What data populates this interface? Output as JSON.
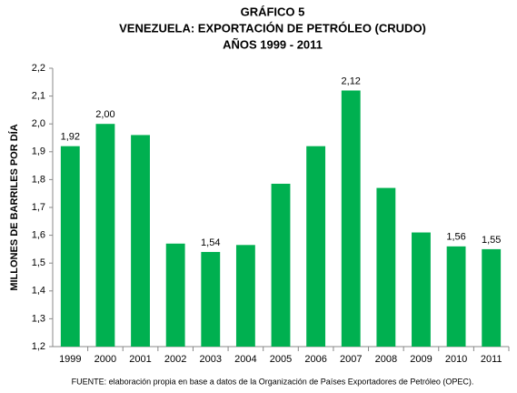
{
  "chart_data": {
    "type": "bar",
    "title": [
      "GRÁFICO 5",
      "VENEZUELA: EXPORTACIÓN DE PETRÓLEO (CRUDO)",
      "AÑOS 1999 - 2011"
    ],
    "ylabel": "MILLONES DE BARRILES POR DÍA",
    "categories": [
      "1999",
      "2000",
      "2001",
      "2002",
      "2003",
      "2004",
      "2005",
      "2006",
      "2007",
      "2008",
      "2009",
      "2010",
      "2011"
    ],
    "values": [
      1.92,
      2.0,
      1.96,
      1.57,
      1.54,
      1.565,
      1.785,
      1.92,
      2.12,
      1.77,
      1.61,
      1.56,
      1.55
    ],
    "value_labels": [
      "1,92",
      "2,00",
      null,
      null,
      "1,54",
      null,
      null,
      null,
      "2,12",
      null,
      null,
      "1,56",
      "1,55"
    ],
    "color": "#00b050",
    "ylim": [
      1.2,
      2.2
    ],
    "yticks": [
      {
        "value": 1.2,
        "label": "1,2"
      },
      {
        "value": 1.3,
        "label": "1,3"
      },
      {
        "value": 1.4,
        "label": "1,4"
      },
      {
        "value": 1.5,
        "label": "1,5"
      },
      {
        "value": 1.6,
        "label": "1,6"
      },
      {
        "value": 1.7,
        "label": "1,7"
      },
      {
        "value": 1.8,
        "label": "1,8"
      },
      {
        "value": 1.9,
        "label": "1,9"
      },
      {
        "value": 2.0,
        "label": "2,0"
      },
      {
        "value": 2.1,
        "label": "2,1"
      },
      {
        "value": 2.2,
        "label": "2,2"
      }
    ],
    "grid": false,
    "source": "FUENTE: elaboración propia en base a datos de la Organización de Países Exportadores de Petróleo (OPEC)."
  }
}
